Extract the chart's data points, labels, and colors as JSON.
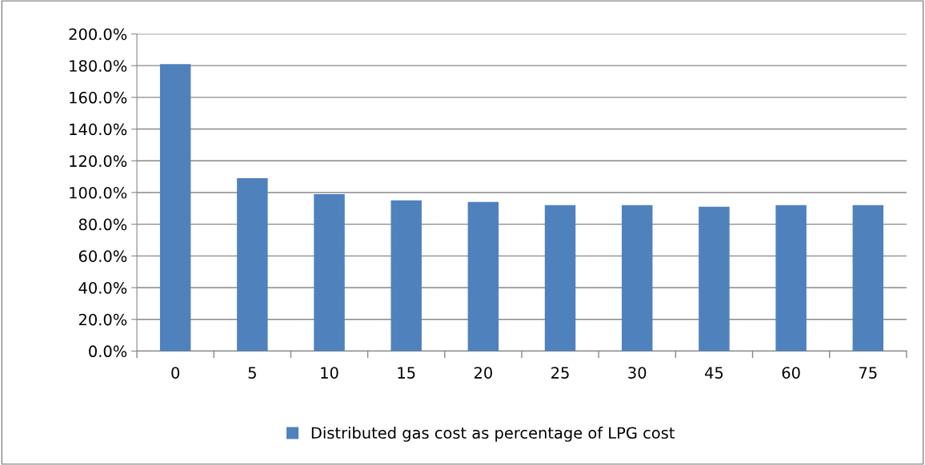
{
  "chart_data": {
    "type": "bar",
    "categories": [
      "0",
      "5",
      "10",
      "15",
      "20",
      "25",
      "30",
      "45",
      "60",
      "75"
    ],
    "series": [
      {
        "name": "Distributed gas cost as percentage of LPG cost",
        "color": "#4f81bd",
        "values": [
          181,
          109,
          99,
          95,
          94,
          92,
          92,
          91,
          92,
          92
        ]
      }
    ],
    "ylim": [
      0,
      200
    ],
    "yticks": [
      {
        "value": 0,
        "label": "0.0%"
      },
      {
        "value": 20,
        "label": "20.0%"
      },
      {
        "value": 40,
        "label": "40.0%"
      },
      {
        "value": 60,
        "label": "60.0%"
      },
      {
        "value": 80,
        "label": "80.0%"
      },
      {
        "value": 100,
        "label": "100.0%"
      },
      {
        "value": 120,
        "label": "120.0%"
      },
      {
        "value": 140,
        "label": "140.0%"
      },
      {
        "value": 160,
        "label": "160.0%"
      },
      {
        "value": 180,
        "label": "180.0%"
      },
      {
        "value": 200,
        "label": "200.0%"
      }
    ],
    "grid": "y",
    "legend": "bottom"
  }
}
